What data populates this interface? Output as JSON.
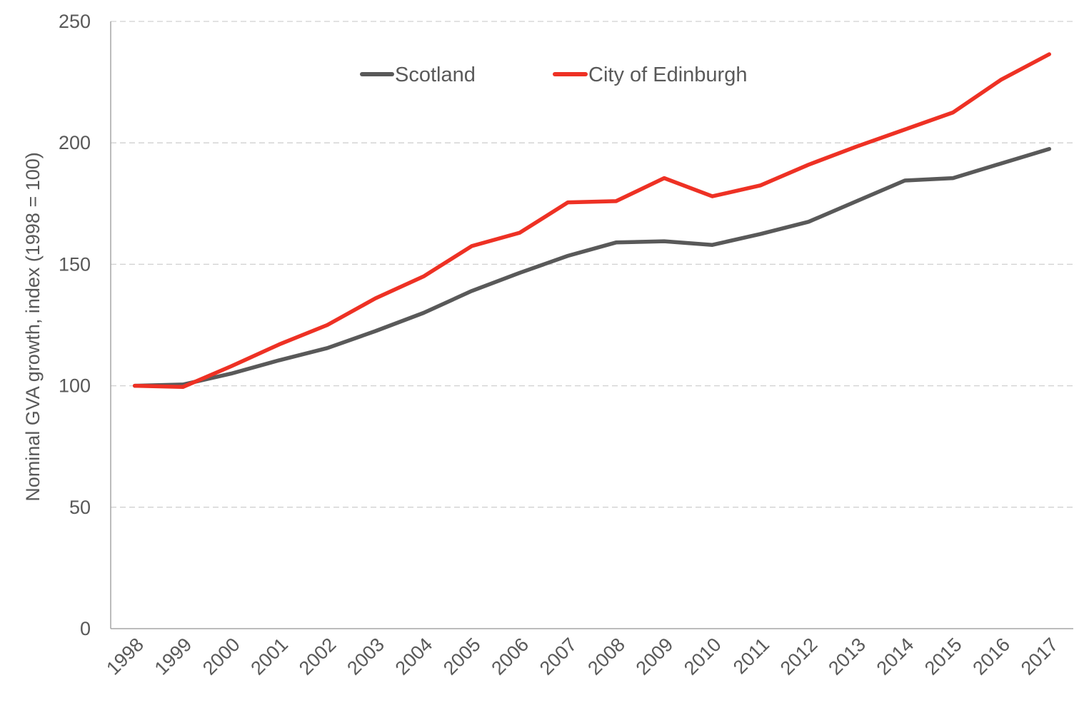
{
  "chart_data": {
    "type": "line",
    "title": "",
    "xlabel": "",
    "ylabel": "Nominal  GVA growth,  index  (1998 = 100)",
    "ylim": [
      0,
      250
    ],
    "yticks": [
      0,
      50,
      100,
      150,
      200,
      250
    ],
    "grid": true,
    "legend_position": "top-center",
    "categories": [
      "1998",
      "1999",
      "2000",
      "2001",
      "2002",
      "2003",
      "2004",
      "2005",
      "2006",
      "2007",
      "2008",
      "2009",
      "2010",
      "2011",
      "2012",
      "2013",
      "2014",
      "2015",
      "2016",
      "2017"
    ],
    "series": [
      {
        "name": "Scotland",
        "color": "#595959",
        "values": [
          100,
          100.5,
          105,
          110.5,
          115.5,
          122.5,
          130,
          139,
          146.5,
          153.5,
          159,
          159.5,
          158,
          162.5,
          167.5,
          176,
          184.5,
          185.5,
          191.5,
          197.5
        ]
      },
      {
        "name": "City of Edinburgh",
        "color": "#ee3124",
        "values": [
          100,
          99.5,
          108,
          117,
          125,
          136,
          145,
          157.5,
          163,
          175.5,
          176,
          185.5,
          178,
          182.5,
          191,
          198.5,
          205.5,
          212.5,
          226,
          236.5
        ]
      }
    ]
  }
}
